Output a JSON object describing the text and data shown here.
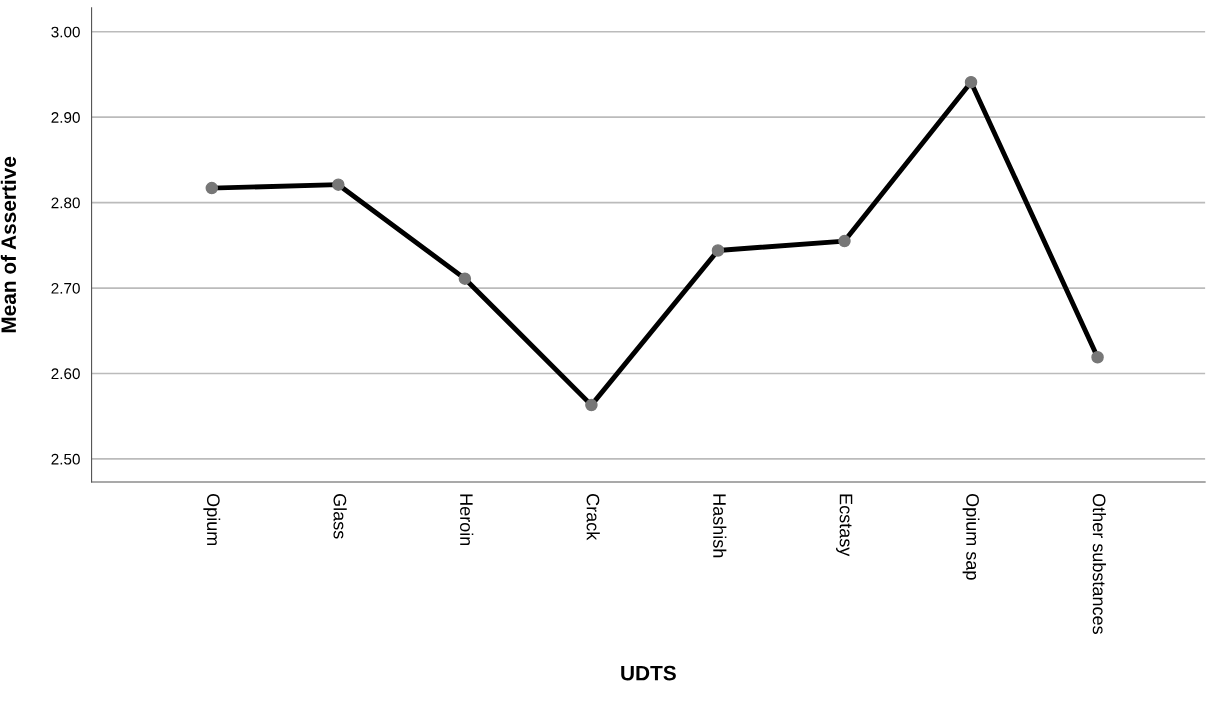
{
  "chart_data": {
    "type": "line",
    "xlabel": "UDTS",
    "ylabel": "Mean of Assertive",
    "categories": [
      "Opium",
      "Glass",
      "Heroin",
      "Crack",
      "Hashish",
      "Ecstasy",
      "Opium sap",
      "Other substances"
    ],
    "series": [
      {
        "color": "#000000",
        "values": [
          2.817,
          2.821,
          2.711,
          2.563,
          2.744,
          2.755,
          2.941,
          2.619
        ]
      }
    ],
    "ylim": [
      2.473,
      3.028
    ],
    "yticks": [
      {
        "value": 2.5,
        "label": "2.50"
      },
      {
        "value": 2.6,
        "label": "2.60"
      },
      {
        "value": 2.7,
        "label": "2.70"
      },
      {
        "value": 2.8,
        "label": "2.80"
      },
      {
        "value": 2.9,
        "label": "2.90"
      },
      {
        "value": 3.0,
        "label": "3.00"
      }
    ],
    "grid": "y",
    "marker": "circle",
    "line_style": "solid"
  }
}
